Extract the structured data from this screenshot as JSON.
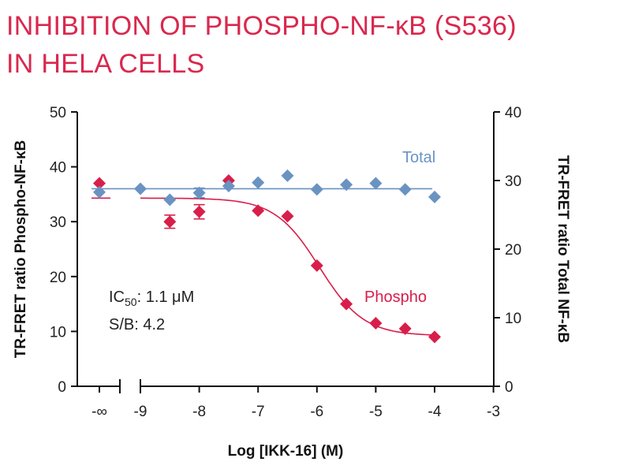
{
  "title": {
    "line1": "INHIBITION OF PHOSPHO-NF-κB (S536)",
    "line2": "IN HELA CELLS"
  },
  "colors": {
    "title": "#d9284e",
    "phospho": "#d81e4a",
    "total": "#6a93c2",
    "axis": "#111111"
  },
  "chart_data": {
    "type": "scatter",
    "xlabel": "Log [IKK-16] (M)",
    "ylabel_left": "TR-FRET ratio Phospho-NF-κB",
    "ylabel_right": "TR-FRET ratio Total NF-κB",
    "x_ticks": [
      "-∞",
      "-9",
      "-8",
      "-7",
      "-6",
      "-5",
      "-4",
      "-3"
    ],
    "y_left_ticks": [
      "0",
      "10",
      "20",
      "30",
      "40",
      "50"
    ],
    "y_right_ticks": [
      "0",
      "10",
      "20",
      "30",
      "40"
    ],
    "ylim_left": [
      0,
      50
    ],
    "ylim_right": [
      0,
      40
    ],
    "xlim": [
      -9.7,
      -3
    ],
    "axis_break": true,
    "series": [
      {
        "name": "Phospho",
        "axis": "left",
        "fit": "sigmoidal",
        "x": [
          "-∞",
          -8.5,
          -8,
          -7.5,
          -7,
          -6.5,
          -6,
          -5.5,
          -5,
          -4.5,
          -4
        ],
        "y": [
          37,
          30,
          31.8,
          37.5,
          32,
          31,
          22,
          15,
          11.5,
          10.5,
          9
        ],
        "error": [
          0,
          1.2,
          1.3,
          0,
          0,
          0,
          0,
          0,
          0,
          0,
          0
        ]
      },
      {
        "name": "Total",
        "axis": "right",
        "fit": "flat",
        "x": [
          "-∞",
          -9,
          -8.5,
          -8,
          -7.5,
          -7,
          -6.5,
          -6,
          -5.5,
          -5,
          -4.5,
          -4
        ],
        "y": [
          28.3,
          28.8,
          27.2,
          28.2,
          29.2,
          29.7,
          30.7,
          28.7,
          29.4,
          29.6,
          28.7,
          27.6
        ],
        "error": [
          0,
          0,
          0,
          0.7,
          0,
          0,
          0,
          0,
          0,
          0,
          0,
          0
        ]
      }
    ],
    "annotations": {
      "ic50_prefix": "IC",
      "ic50_sub": "50",
      "ic50_value": ": 1.1 μM",
      "sb": "S/B: 4.2"
    }
  }
}
